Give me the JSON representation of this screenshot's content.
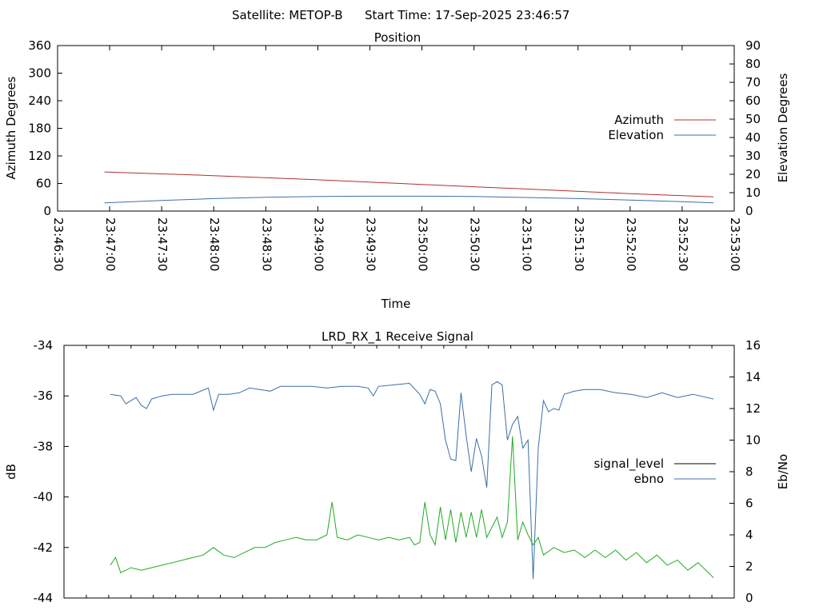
{
  "header": {
    "satellite_label": "Satellite: METOP-B",
    "start_label": "Start Time: 17-Sep-2025 23:46:57"
  },
  "chart_data": [
    {
      "type": "line",
      "title": "Position",
      "xlabel": "Time",
      "ylabel": "Azimuth Degrees",
      "y2label": "Elevation Degrees",
      "x_ticks": [
        "23:46:30",
        "23:47:00",
        "23:47:30",
        "23:48:00",
        "23:48:30",
        "23:49:00",
        "23:49:30",
        "23:50:00",
        "23:50:30",
        "23:51:00",
        "23:51:30",
        "23:52:00",
        "23:52:30",
        "23:53:00"
      ],
      "y_ticks": [
        0,
        60,
        120,
        180,
        240,
        300,
        360
      ],
      "y2_ticks": [
        0,
        10,
        20,
        30,
        40,
        50,
        60,
        70,
        80,
        90
      ],
      "ylim": [
        0,
        360
      ],
      "y2lim": [
        0,
        90
      ],
      "legend": "right",
      "series": [
        {
          "name": "Azimuth",
          "axis": "left",
          "color": "#b03030",
          "points": [
            [
              "23:46:57",
              85
            ],
            [
              "23:48:00",
              77
            ],
            [
              "23:49:00",
              68
            ],
            [
              "23:50:00",
              58
            ],
            [
              "23:51:00",
              48
            ],
            [
              "23:52:00",
              38
            ],
            [
              "23:52:48",
              31
            ]
          ]
        },
        {
          "name": "Elevation",
          "axis": "right",
          "color": "#3c6fa8",
          "points": [
            [
              "23:46:57",
              4.5
            ],
            [
              "23:47:30",
              5.8
            ],
            [
              "23:48:00",
              6.8
            ],
            [
              "23:48:30",
              7.5
            ],
            [
              "23:49:00",
              7.9
            ],
            [
              "23:49:30",
              8.1
            ],
            [
              "23:50:00",
              8.1
            ],
            [
              "23:50:30",
              7.9
            ],
            [
              "23:51:00",
              7.4
            ],
            [
              "23:51:30",
              6.8
            ],
            [
              "23:52:00",
              6.0
            ],
            [
              "23:52:30",
              5.1
            ],
            [
              "23:52:48",
              4.5
            ]
          ]
        }
      ]
    },
    {
      "type": "line",
      "title": "LRD_RX_1 Receive Signal",
      "ylabel": "dB",
      "y2label": "Eb/No",
      "y_ticks": [
        -34,
        -36,
        -38,
        -40,
        -42,
        -44
      ],
      "y2_ticks": [
        0,
        2,
        4,
        6,
        8,
        10,
        12,
        14,
        16
      ],
      "ylim": [
        -44,
        -34
      ],
      "y2lim": [
        0,
        16
      ],
      "x_minor_ticks": 30,
      "legend": "right",
      "series": [
        {
          "name": "signal_level",
          "axis": "left",
          "color": "#000000",
          "points": []
        },
        {
          "name": "ebno",
          "axis": "right",
          "color": "#3c6fa8",
          "points": [
            [
              "23:46:57",
              12.9
            ],
            [
              "23:47:03",
              12.8
            ],
            [
              "23:47:06",
              12.3
            ],
            [
              "23:47:09",
              12.5
            ],
            [
              "23:47:12",
              12.7
            ],
            [
              "23:47:15",
              12.2
            ],
            [
              "23:47:18",
              12.0
            ],
            [
              "23:47:21",
              12.6
            ],
            [
              "23:47:27",
              12.8
            ],
            [
              "23:47:33",
              12.9
            ],
            [
              "23:47:39",
              12.9
            ],
            [
              "23:47:45",
              12.9
            ],
            [
              "23:47:54",
              13.3
            ],
            [
              "23:47:57",
              11.9
            ],
            [
              "23:48:00",
              12.9
            ],
            [
              "23:48:06",
              12.9
            ],
            [
              "23:48:12",
              13.0
            ],
            [
              "23:48:18",
              13.3
            ],
            [
              "23:48:24",
              13.2
            ],
            [
              "23:48:30",
              13.1
            ],
            [
              "23:48:36",
              13.4
            ],
            [
              "23:48:45",
              13.4
            ],
            [
              "23:48:54",
              13.4
            ],
            [
              "23:49:03",
              13.3
            ],
            [
              "23:49:12",
              13.4
            ],
            [
              "23:49:21",
              13.4
            ],
            [
              "23:49:27",
              13.3
            ],
            [
              "23:49:30",
              12.8
            ],
            [
              "23:49:33",
              13.4
            ],
            [
              "23:49:42",
              13.5
            ],
            [
              "23:49:51",
              13.6
            ],
            [
              "23:49:57",
              12.9
            ],
            [
              "23:50:00",
              12.3
            ],
            [
              "23:50:03",
              13.2
            ],
            [
              "23:50:06",
              13.1
            ],
            [
              "23:50:09",
              12.3
            ],
            [
              "23:50:12",
              10.0
            ],
            [
              "23:50:15",
              8.8
            ],
            [
              "23:50:18",
              8.7
            ],
            [
              "23:50:21",
              13.0
            ],
            [
              "23:50:24",
              10.3
            ],
            [
              "23:50:27",
              8.0
            ],
            [
              "23:50:30",
              10.1
            ],
            [
              "23:50:33",
              9.0
            ],
            [
              "23:50:36",
              7.0
            ],
            [
              "23:50:39",
              13.5
            ],
            [
              "23:50:42",
              13.7
            ],
            [
              "23:50:45",
              13.5
            ],
            [
              "23:50:48",
              10.0
            ],
            [
              "23:50:51",
              11.0
            ],
            [
              "23:50:54",
              11.5
            ],
            [
              "23:50:57",
              9.5
            ],
            [
              "23:51:00",
              10.0
            ],
            [
              "23:51:03",
              1.2
            ],
            [
              "23:51:06",
              9.5
            ],
            [
              "23:51:09",
              12.5
            ],
            [
              "23:51:12",
              11.8
            ],
            [
              "23:51:15",
              12.0
            ],
            [
              "23:51:18",
              11.9
            ],
            [
              "23:51:21",
              12.9
            ],
            [
              "23:51:27",
              13.1
            ],
            [
              "23:51:33",
              13.2
            ],
            [
              "23:51:42",
              13.2
            ],
            [
              "23:51:51",
              13.0
            ],
            [
              "23:52:00",
              12.9
            ],
            [
              "23:52:09",
              12.7
            ],
            [
              "23:52:18",
              13.0
            ],
            [
              "23:52:27",
              12.7
            ],
            [
              "23:52:36",
              12.9
            ],
            [
              "23:52:48",
              12.6
            ]
          ]
        },
        {
          "name": "",
          "axis": "left",
          "color": "#22aa22",
          "points": [
            [
              "23:46:57",
              -42.7
            ],
            [
              "23:47:00",
              -42.4
            ],
            [
              "23:47:03",
              -43.0
            ],
            [
              "23:47:09",
              -42.8
            ],
            [
              "23:47:15",
              -42.9
            ],
            [
              "23:47:21",
              -42.8
            ],
            [
              "23:47:27",
              -42.7
            ],
            [
              "23:47:33",
              -42.6
            ],
            [
              "23:47:39",
              -42.5
            ],
            [
              "23:47:45",
              -42.4
            ],
            [
              "23:47:51",
              -42.3
            ],
            [
              "23:47:57",
              -42.0
            ],
            [
              "23:48:03",
              -42.3
            ],
            [
              "23:48:09",
              -42.4
            ],
            [
              "23:48:15",
              -42.2
            ],
            [
              "23:48:21",
              -42.0
            ],
            [
              "23:48:27",
              -42.0
            ],
            [
              "23:48:33",
              -41.8
            ],
            [
              "23:48:39",
              -41.7
            ],
            [
              "23:48:45",
              -41.6
            ],
            [
              "23:48:51",
              -41.7
            ],
            [
              "23:48:57",
              -41.7
            ],
            [
              "23:49:03",
              -41.5
            ],
            [
              "23:49:06",
              -40.2
            ],
            [
              "23:49:09",
              -41.6
            ],
            [
              "23:49:15",
              -41.7
            ],
            [
              "23:49:21",
              -41.5
            ],
            [
              "23:49:27",
              -41.6
            ],
            [
              "23:49:33",
              -41.7
            ],
            [
              "23:49:39",
              -41.6
            ],
            [
              "23:49:45",
              -41.7
            ],
            [
              "23:49:51",
              -41.6
            ],
            [
              "23:49:54",
              -41.9
            ],
            [
              "23:49:57",
              -41.8
            ],
            [
              "23:50:00",
              -40.2
            ],
            [
              "23:50:03",
              -41.5
            ],
            [
              "23:50:06",
              -41.9
            ],
            [
              "23:50:09",
              -40.4
            ],
            [
              "23:50:12",
              -41.7
            ],
            [
              "23:50:15",
              -40.5
            ],
            [
              "23:50:18",
              -41.8
            ],
            [
              "23:50:21",
              -40.6
            ],
            [
              "23:50:24",
              -41.6
            ],
            [
              "23:50:27",
              -40.6
            ],
            [
              "23:50:30",
              -41.6
            ],
            [
              "23:50:33",
              -40.5
            ],
            [
              "23:50:36",
              -41.6
            ],
            [
              "23:50:39",
              -41.2
            ],
            [
              "23:50:42",
              -40.8
            ],
            [
              "23:50:45",
              -41.6
            ],
            [
              "23:50:48",
              -41.0
            ],
            [
              "23:50:51",
              -37.6
            ],
            [
              "23:50:54",
              -41.7
            ],
            [
              "23:50:57",
              -41.0
            ],
            [
              "23:51:00",
              -41.5
            ],
            [
              "23:51:03",
              -41.9
            ],
            [
              "23:51:06",
              -41.6
            ],
            [
              "23:51:09",
              -42.3
            ],
            [
              "23:51:15",
              -42.0
            ],
            [
              "23:51:21",
              -42.2
            ],
            [
              "23:51:27",
              -42.1
            ],
            [
              "23:51:33",
              -42.4
            ],
            [
              "23:51:39",
              -42.1
            ],
            [
              "23:51:45",
              -42.4
            ],
            [
              "23:51:51",
              -42.1
            ],
            [
              "23:51:57",
              -42.5
            ],
            [
              "23:52:03",
              -42.2
            ],
            [
              "23:52:09",
              -42.6
            ],
            [
              "23:52:15",
              -42.3
            ],
            [
              "23:52:21",
              -42.7
            ],
            [
              "23:52:27",
              -42.5
            ],
            [
              "23:52:33",
              -42.9
            ],
            [
              "23:52:39",
              -42.6
            ],
            [
              "23:52:45",
              -43.0
            ],
            [
              "23:52:48",
              -43.2
            ]
          ]
        }
      ]
    }
  ]
}
